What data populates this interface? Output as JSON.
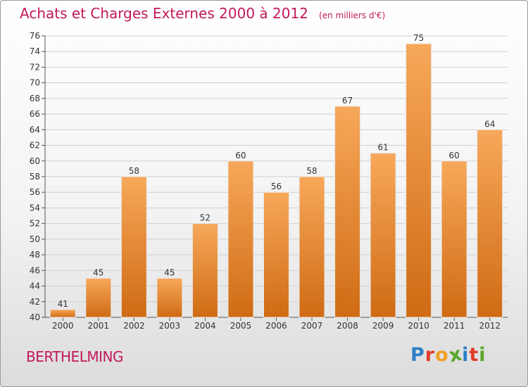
{
  "chart_data": {
    "type": "bar",
    "title": "Achats et Charges Externes 2000 à 2012",
    "subtitle": "(en milliers d'€)",
    "categories": [
      "2000",
      "2001",
      "2002",
      "2003",
      "2004",
      "2005",
      "2006",
      "2007",
      "2008",
      "2009",
      "2010",
      "2011",
      "2012"
    ],
    "values": [
      41,
      45,
      58,
      45,
      52,
      60,
      56,
      58,
      67,
      61,
      75,
      60,
      64
    ],
    "ylim": [
      40,
      76
    ],
    "yticks": [
      40,
      42,
      44,
      46,
      48,
      50,
      52,
      54,
      56,
      58,
      60,
      62,
      64,
      66,
      68,
      70,
      72,
      74,
      76
    ],
    "grid": true,
    "legend": "none",
    "bar_color_light": "#f7a85a",
    "bar_color_dark": "#cf6b14"
  },
  "footer": {
    "commune": "BERTHELMING",
    "logo_letters": [
      {
        "char": "P",
        "color": "#2f7fc7"
      },
      {
        "char": "r",
        "color": "#e23a2a"
      },
      {
        "char": "o",
        "color": "#f0a020"
      },
      {
        "char": "x",
        "color": "#5aa62a"
      },
      {
        "char": "i",
        "color": "#2f7fc7"
      },
      {
        "char": "t",
        "color": "#e23a2a"
      },
      {
        "char": "i",
        "color": "#5aa62a"
      }
    ]
  }
}
